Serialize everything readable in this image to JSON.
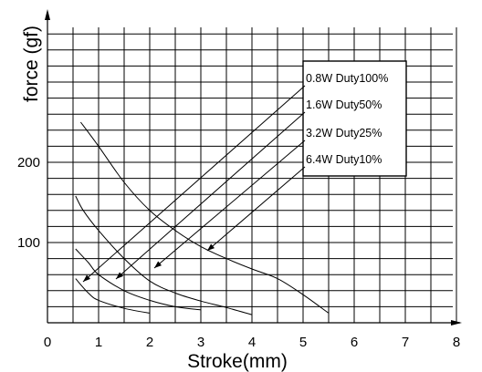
{
  "chart_data": {
    "type": "line",
    "xlabel": "Stroke(mm)",
    "ylabel": "force (gf)",
    "xlim": [
      0,
      8
    ],
    "ylim": [
      0,
      375
    ],
    "grid": true,
    "x_ticks": [
      "0",
      "1",
      "2",
      "3",
      "4",
      "5",
      "6",
      "7",
      "8"
    ],
    "y_ticks": [
      {
        "value": 100,
        "label": "100"
      },
      {
        "value": 200,
        "label": "200"
      }
    ],
    "legend_position": "top-right",
    "series": [
      {
        "name": "0.8W Duty100%",
        "x": [
          0.65,
          1.0,
          1.5,
          2.0,
          2.5,
          3.0,
          3.5,
          4.0,
          4.5,
          5.0,
          5.5
        ],
        "y": [
          250,
          220,
          175,
          140,
          115,
          95,
          80,
          67,
          55,
          35,
          12
        ]
      },
      {
        "name": "1.6W Duty50%",
        "x": [
          0.55,
          0.7,
          1.0,
          1.5,
          2.0,
          2.5,
          3.0,
          3.5,
          4.0
        ],
        "y": [
          158,
          140,
          115,
          80,
          52,
          37,
          27,
          19,
          10
        ]
      },
      {
        "name": "3.2W Duty25%",
        "x": [
          0.55,
          0.8,
          1.0,
          1.5,
          2.0,
          2.5,
          3.0
        ],
        "y": [
          92,
          75,
          60,
          40,
          28,
          20,
          16
        ]
      },
      {
        "name": "6.4W Duty10%",
        "x": [
          0.55,
          0.8,
          1.0,
          1.5,
          2.0
        ],
        "y": [
          55,
          37,
          28,
          18,
          12
        ]
      }
    ]
  }
}
